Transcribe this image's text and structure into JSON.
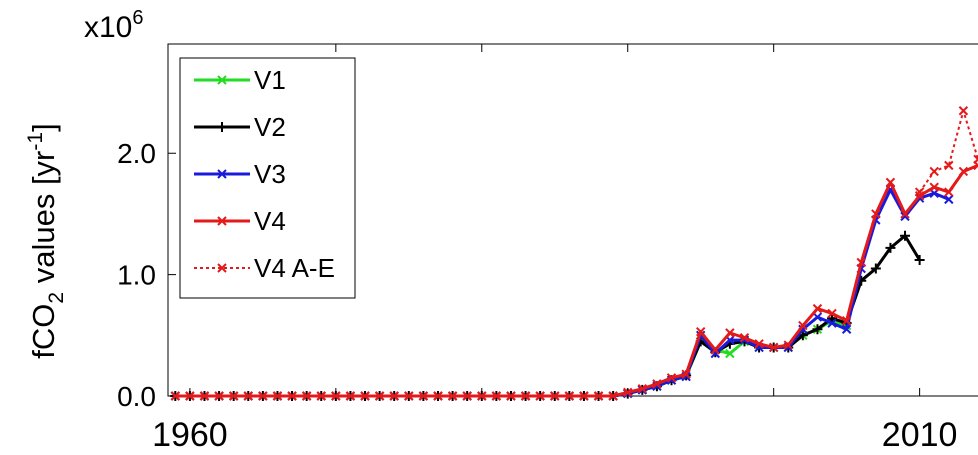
{
  "chart_data": {
    "type": "line",
    "multiplier": {
      "base": "x10",
      "exp": "6"
    },
    "ylabel": {
      "pre": "fCO",
      "sub": "2",
      "mid": " values [yr",
      "sup": "-1",
      "post": "]"
    },
    "xlim": [
      1958.5,
      2014
    ],
    "ylim": [
      0,
      2.9
    ],
    "x_ticks": [
      {
        "value": 1960,
        "label": "1960"
      },
      {
        "value": 2010,
        "label": "2010"
      }
    ],
    "y_ticks": [
      {
        "value": 0,
        "label": "0.0"
      },
      {
        "value": 1.0,
        "label": "1.0"
      },
      {
        "value": 2.0,
        "label": "2.0"
      }
    ],
    "legend": {
      "position": "top-left"
    },
    "series": [
      {
        "name": "V1",
        "color": "#22dd22",
        "marker": "x",
        "dashed": false,
        "x": [
          1959,
          1960,
          1961,
          1962,
          1963,
          1964,
          1965,
          1966,
          1967,
          1968,
          1969,
          1970,
          1971,
          1972,
          1973,
          1974,
          1975,
          1976,
          1977,
          1978,
          1979,
          1980,
          1981,
          1982,
          1983,
          1984,
          1985,
          1986,
          1987,
          1988,
          1989,
          1990,
          1991,
          1992,
          1993,
          1994,
          1995,
          1996,
          1997,
          1998,
          1999,
          2000,
          2001,
          2002,
          2003,
          2004,
          2005
        ],
        "y": [
          0,
          0,
          0,
          0,
          0,
          0,
          0,
          0,
          0,
          0,
          0,
          0,
          0,
          0,
          0,
          0,
          0,
          0,
          0,
          0,
          0,
          0,
          0,
          0,
          0,
          0,
          0,
          0,
          0,
          0,
          0,
          0.02,
          0.05,
          0.08,
          0.13,
          0.16,
          0.45,
          0.38,
          0.35,
          0.45,
          0.4,
          0.4,
          0.4,
          0.5,
          0.55,
          0.62,
          0.58
        ]
      },
      {
        "name": "V2",
        "color": "#000000",
        "marker": "+",
        "dashed": false,
        "x": [
          1959,
          1960,
          1961,
          1962,
          1963,
          1964,
          1965,
          1966,
          1967,
          1968,
          1969,
          1970,
          1971,
          1972,
          1973,
          1974,
          1975,
          1976,
          1977,
          1978,
          1979,
          1980,
          1981,
          1982,
          1983,
          1984,
          1985,
          1986,
          1987,
          1988,
          1989,
          1990,
          1991,
          1992,
          1993,
          1994,
          1995,
          1996,
          1997,
          1998,
          1999,
          2000,
          2001,
          2002,
          2003,
          2004,
          2005,
          2006,
          2007,
          2008,
          2009,
          2010
        ],
        "y": [
          0,
          0,
          0,
          0,
          0,
          0,
          0,
          0,
          0,
          0,
          0,
          0,
          0,
          0,
          0,
          0,
          0,
          0,
          0,
          0,
          0,
          0,
          0,
          0,
          0,
          0,
          0,
          0,
          0,
          0,
          0,
          0.02,
          0.05,
          0.08,
          0.13,
          0.17,
          0.45,
          0.36,
          0.43,
          0.45,
          0.4,
          0.4,
          0.4,
          0.5,
          0.55,
          0.64,
          0.6,
          0.95,
          1.05,
          1.22,
          1.32,
          1.12
        ]
      },
      {
        "name": "V3",
        "color": "#1a1adc",
        "marker": "x",
        "dashed": false,
        "x": [
          1959,
          1960,
          1961,
          1962,
          1963,
          1964,
          1965,
          1966,
          1967,
          1968,
          1969,
          1970,
          1971,
          1972,
          1973,
          1974,
          1975,
          1976,
          1977,
          1978,
          1979,
          1980,
          1981,
          1982,
          1983,
          1984,
          1985,
          1986,
          1987,
          1988,
          1989,
          1990,
          1991,
          1992,
          1993,
          1994,
          1995,
          1996,
          1997,
          1998,
          1999,
          2000,
          2001,
          2002,
          2003,
          2004,
          2005,
          2006,
          2007,
          2008,
          2009,
          2010,
          2011,
          2012
        ],
        "y": [
          0,
          0,
          0,
          0,
          0,
          0,
          0,
          0,
          0,
          0,
          0,
          0,
          0,
          0,
          0,
          0,
          0,
          0,
          0,
          0,
          0,
          0,
          0,
          0,
          0,
          0,
          0,
          0,
          0,
          0,
          0,
          0.02,
          0.05,
          0.08,
          0.13,
          0.16,
          0.5,
          0.35,
          0.46,
          0.46,
          0.4,
          0.4,
          0.4,
          0.55,
          0.65,
          0.6,
          0.55,
          1.05,
          1.45,
          1.7,
          1.48,
          1.63,
          1.67,
          1.62
        ]
      },
      {
        "name": "V4",
        "color": "#e41a1a",
        "marker": "x",
        "dashed": false,
        "x": [
          1959,
          1960,
          1961,
          1962,
          1963,
          1964,
          1965,
          1966,
          1967,
          1968,
          1969,
          1970,
          1971,
          1972,
          1973,
          1974,
          1975,
          1976,
          1977,
          1978,
          1979,
          1980,
          1981,
          1982,
          1983,
          1984,
          1985,
          1986,
          1987,
          1988,
          1989,
          1990,
          1991,
          1992,
          1993,
          1994,
          1995,
          1996,
          1997,
          1998,
          1999,
          2000,
          2001,
          2002,
          2003,
          2004,
          2005,
          2006,
          2007,
          2008,
          2009,
          2010,
          2011,
          2012,
          2013,
          2014
        ],
        "y": [
          0,
          0,
          0,
          0,
          0,
          0,
          0,
          0,
          0,
          0,
          0,
          0,
          0,
          0,
          0,
          0,
          0,
          0,
          0,
          0,
          0,
          0,
          0,
          0,
          0,
          0,
          0,
          0,
          0,
          0,
          0,
          0.03,
          0.06,
          0.1,
          0.15,
          0.18,
          0.53,
          0.38,
          0.52,
          0.48,
          0.43,
          0.4,
          0.42,
          0.58,
          0.72,
          0.68,
          0.62,
          1.1,
          1.5,
          1.76,
          1.5,
          1.65,
          1.72,
          1.68,
          1.85,
          1.9
        ]
      },
      {
        "name": "V4 A-E",
        "color": "#e41a1a",
        "marker": "x",
        "dashed": true,
        "x": [
          2010,
          2011,
          2012,
          2013,
          2014
        ],
        "y": [
          1.68,
          1.85,
          1.9,
          2.35,
          1.95
        ]
      }
    ]
  }
}
